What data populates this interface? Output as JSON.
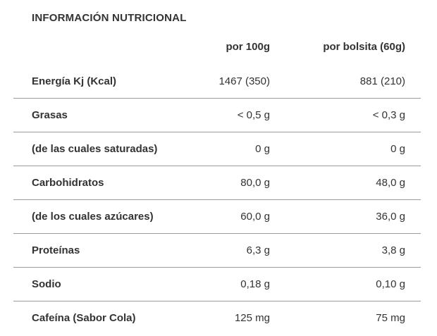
{
  "title": "INFORMACIÓN NUTRICIONAL",
  "table": {
    "columns": [
      "por 100g",
      "por bolsita (60g)"
    ],
    "rows": [
      {
        "label": "Energía Kj (Kcal)",
        "per_100g": "1467 (350)",
        "per_bolsita": "881 (210)"
      },
      {
        "label": "Grasas",
        "per_100g": "< 0,5 g",
        "per_bolsita": "< 0,3 g"
      },
      {
        "label": "(de las cuales saturadas)",
        "per_100g": "0 g",
        "per_bolsita": "0 g"
      },
      {
        "label": "Carbohidratos",
        "per_100g": "80,0 g",
        "per_bolsita": "48,0 g"
      },
      {
        "label": "(de los cuales azúcares)",
        "per_100g": "60,0 g",
        "per_bolsita": "36,0 g"
      },
      {
        "label": "Proteínas",
        "per_100g": "6,3 g",
        "per_bolsita": "3,8 g"
      },
      {
        "label": "Sodio",
        "per_100g": "0,18 g",
        "per_bolsita": "0,10 g"
      },
      {
        "label": "Cafeína (Sabor Cola)",
        "per_100g": "125 mg",
        "per_bolsita": "75 mg"
      }
    ]
  },
  "colors": {
    "text": "#333333",
    "divider": "#9b9b9b",
    "background": "#ffffff"
  }
}
